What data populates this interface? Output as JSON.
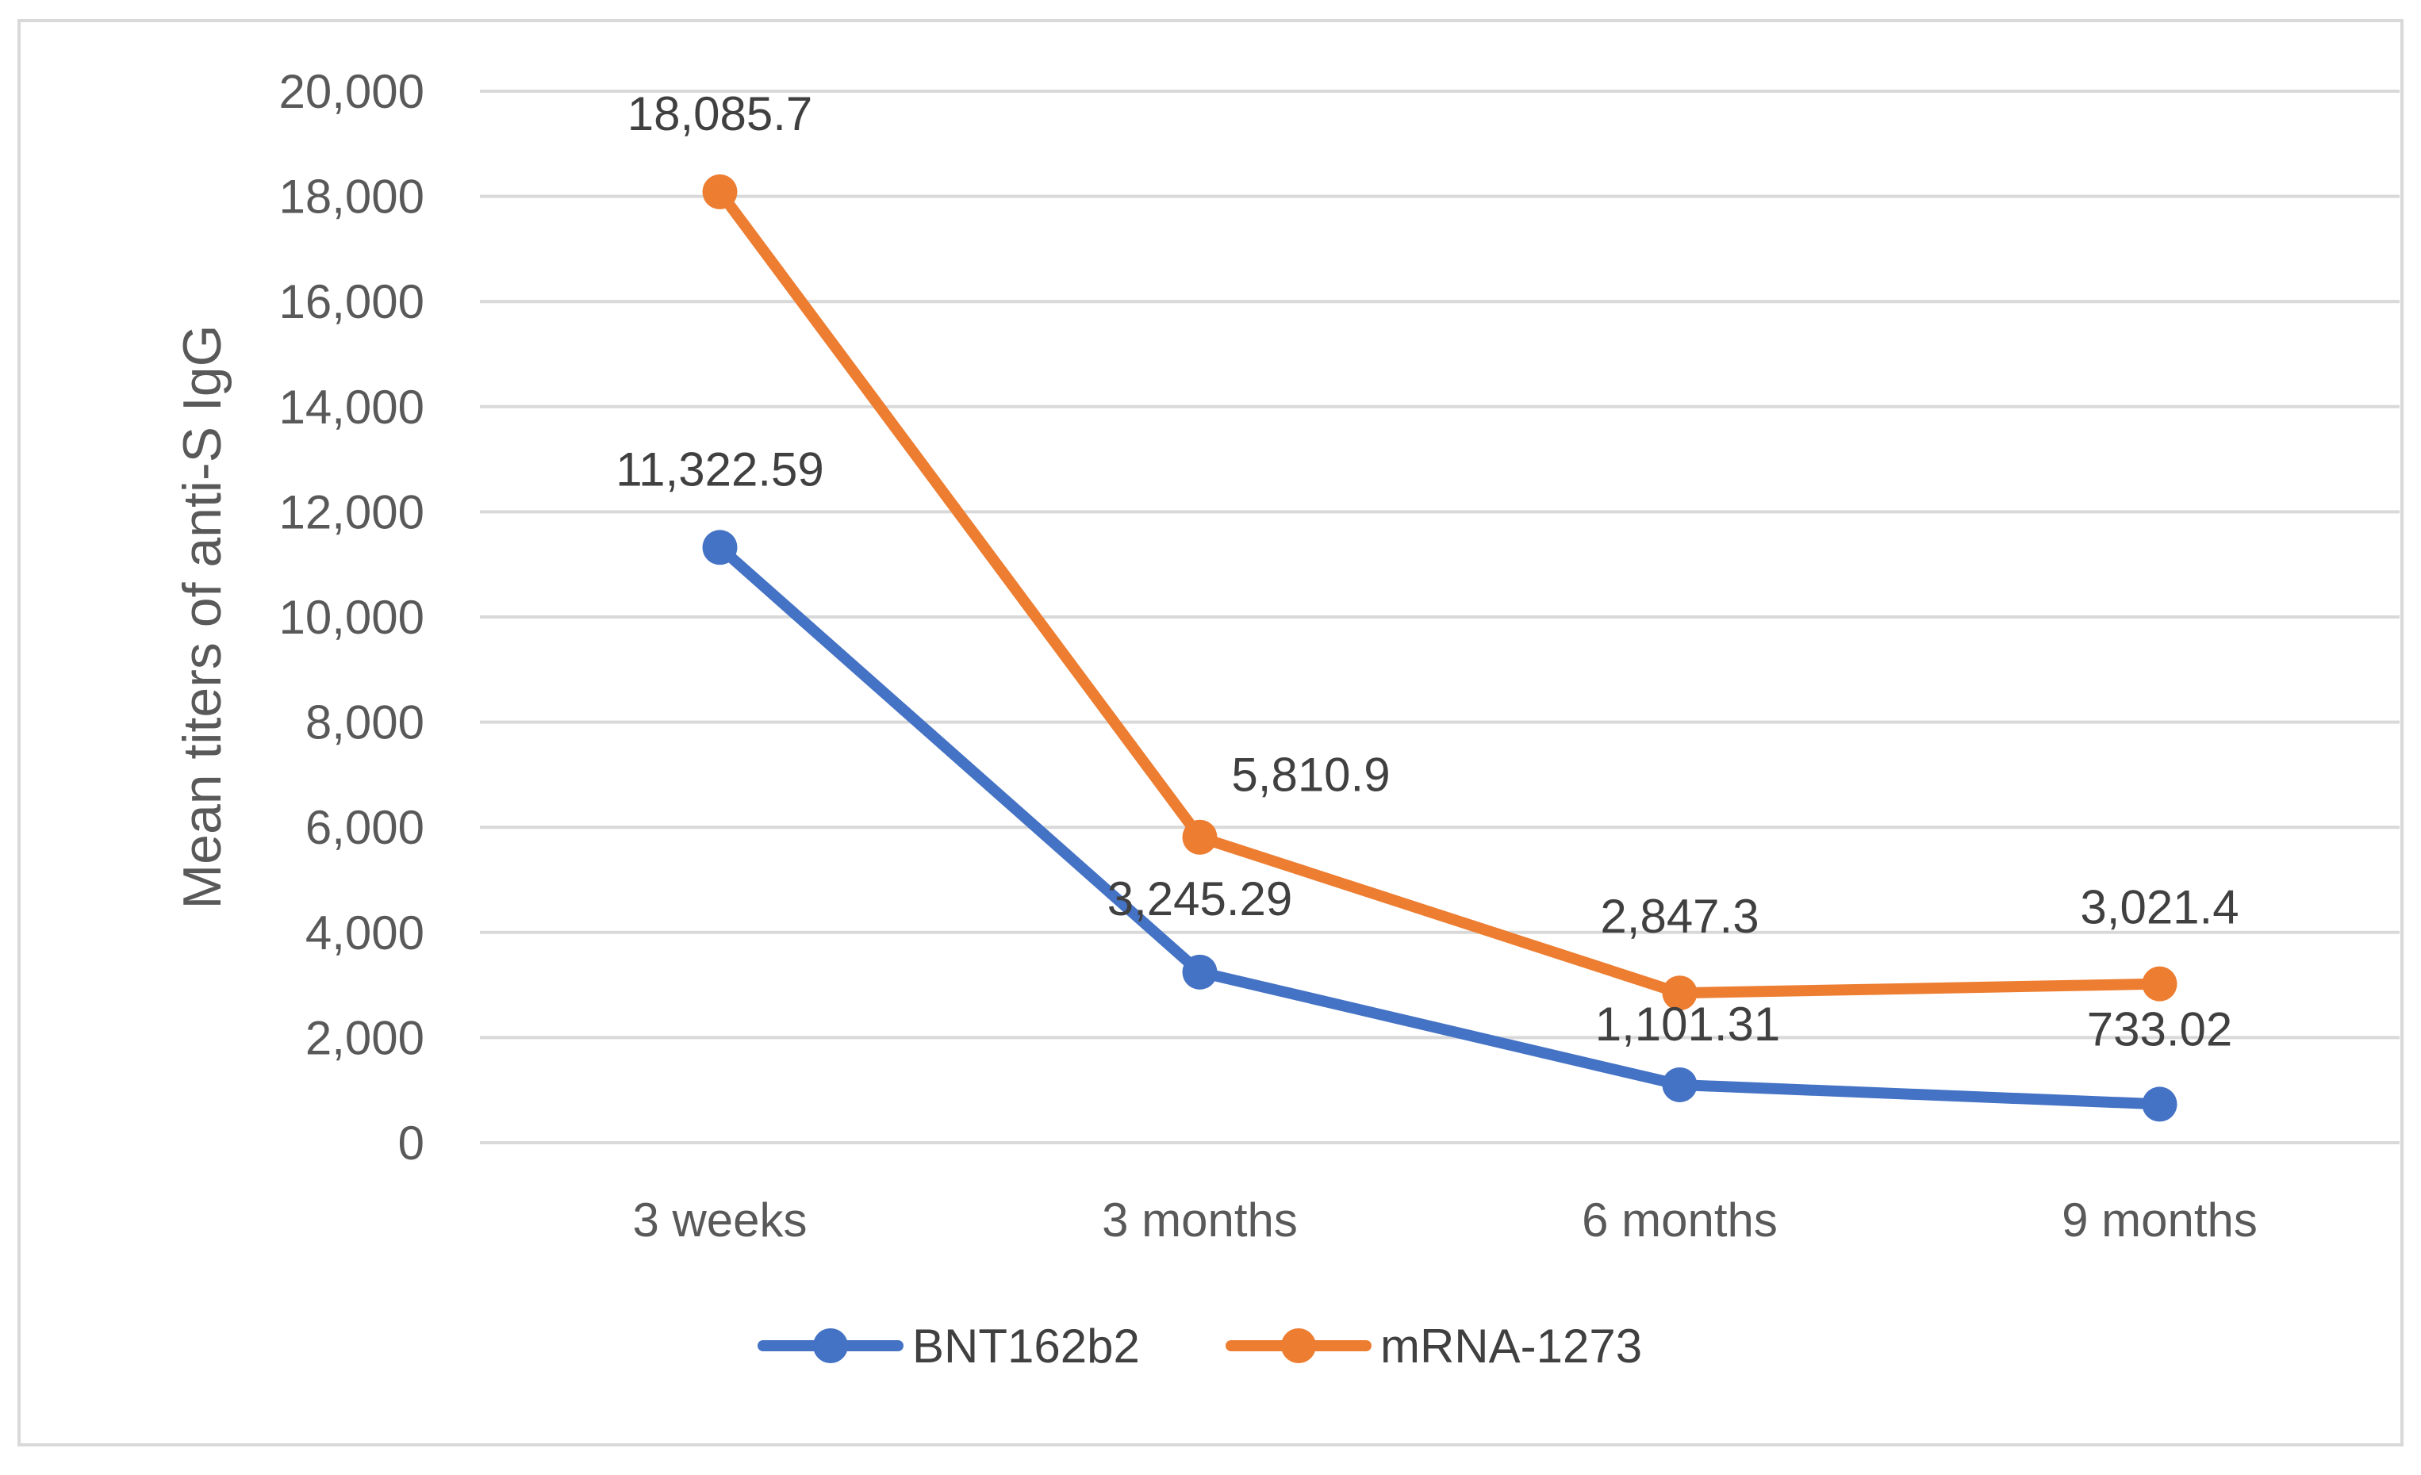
{
  "chart_data": {
    "type": "line",
    "title": "",
    "xlabel": "",
    "ylabel": "Mean titers of anti-S IgG",
    "ylim": [
      0,
      20000
    ],
    "ytick_step": 2000,
    "yticks": [
      "0",
      "2,000",
      "4,000",
      "6,000",
      "8,000",
      "10,000",
      "12,000",
      "14,000",
      "16,000",
      "18,000",
      "20,000"
    ],
    "categories": [
      "3 weeks",
      "3 months",
      "6 months",
      "9 months"
    ],
    "grid": true,
    "legend_position": "bottom",
    "series": [
      {
        "name": "BNT162b2",
        "color": "#4472C4",
        "values": [
          11322.59,
          3245.29,
          1101.31,
          733.02
        ],
        "labels": [
          "11,322.59",
          "3,245.29",
          "1,101.31",
          "733.02"
        ]
      },
      {
        "name": "mRNA-1273",
        "color": "#ED7D31",
        "values": [
          18085.7,
          5810.9,
          2847.3,
          3021.4
        ],
        "labels": [
          "18,085.7",
          "5,810.9",
          "2,847.3",
          "3,021.4"
        ]
      }
    ]
  }
}
